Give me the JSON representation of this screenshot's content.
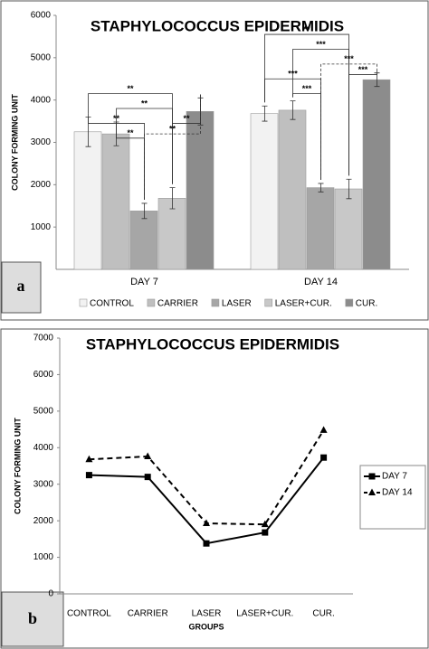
{
  "chart_data": [
    {
      "type": "bar",
      "panel": "a",
      "title": "STAPHYLOCOCCUS EPIDERMIDIS",
      "y_label": "COLONY FORMING UNIT",
      "categories": [
        "DAY 7",
        "DAY 14"
      ],
      "series": [
        {
          "name": "CONTROL",
          "color": "#f2f2f2",
          "values": [
            3250,
            3680
          ],
          "errors": [
            350,
            180
          ]
        },
        {
          "name": "CARRIER",
          "color": "#bfbfbf",
          "values": [
            3200,
            3760
          ],
          "errors": [
            280,
            220
          ]
        },
        {
          "name": "LASER",
          "color": "#a6a6a6",
          "values": [
            1380,
            1930
          ],
          "errors": [
            180,
            100
          ]
        },
        {
          "name": "LASER+CUR.",
          "color": "#c8c8c8",
          "values": [
            1680,
            1900
          ],
          "errors": [
            250,
            230
          ]
        },
        {
          "name": "CUR.",
          "color": "#8c8c8c",
          "values": [
            3730,
            4480
          ],
          "errors": [
            320,
            160
          ]
        }
      ],
      "ylim": [
        0,
        6000
      ],
      "yticks": [
        1000,
        2000,
        3000,
        4000,
        5000,
        6000
      ],
      "grid": false,
      "annotations": [
        "**",
        "**",
        "**",
        "**",
        "**",
        "**",
        "**",
        "***",
        "***",
        "***",
        "***",
        "***"
      ]
    },
    {
      "type": "line",
      "panel": "b",
      "title": "STAPHYLOCOCCUS EPIDERMIDIS",
      "y_label": "COLONY FORMING UNIT",
      "x_label": "GROUPS",
      "categories": [
        "CONTROL",
        "CARRIER",
        "LASER",
        "LASER+CUR.",
        "CUR."
      ],
      "series": [
        {
          "name": "DAY 7",
          "color": "#000000",
          "marker": "square",
          "dashed": false,
          "values": [
            3250,
            3200,
            1380,
            1680,
            3730
          ]
        },
        {
          "name": "DAY 14",
          "color": "#000000",
          "marker": "triangle",
          "dashed": true,
          "values": [
            3680,
            3760,
            1930,
            1900,
            4480
          ]
        }
      ],
      "ylim": [
        0,
        7000
      ],
      "yticks": [
        0,
        1000,
        2000,
        3000,
        4000,
        5000,
        6000,
        7000
      ],
      "grid": false,
      "legend": "right"
    }
  ]
}
